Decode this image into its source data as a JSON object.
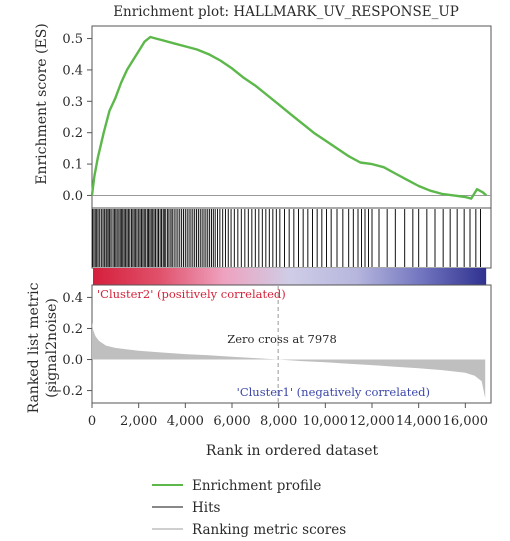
{
  "chart_data": {
    "type": "line",
    "title": "Enrichment plot: HALLMARK_UV_RESPONSE_UP",
    "xlabel": "Rank in ordered dataset",
    "x_ticks": [
      "0",
      "2,000",
      "4,000",
      "6,000",
      "8,000",
      "10,000",
      "12,000",
      "14,000",
      "16,000"
    ],
    "x_tick_values": [
      0,
      2000,
      4000,
      6000,
      8000,
      10000,
      12000,
      14000,
      16000
    ],
    "xlim": [
      0,
      17100
    ],
    "es_panel": {
      "ylabel": "Enrichment score (ES)",
      "ylim": [
        -0.04,
        0.54
      ],
      "y_ticks": [
        "0.0",
        "0.1",
        "0.2",
        "0.3",
        "0.4",
        "0.5"
      ],
      "y_tick_values": [
        0,
        0.1,
        0.2,
        0.3,
        0.4,
        0.5
      ],
      "series": [
        {
          "name": "Enrichment profile",
          "color": "#5cb84a",
          "x": [
            0,
            100,
            250,
            500,
            750,
            1000,
            1250,
            1500,
            1750,
            2000,
            2250,
            2500,
            2750,
            3000,
            3500,
            4000,
            4500,
            5000,
            5500,
            6000,
            6500,
            7000,
            7500,
            8000,
            8500,
            9000,
            9500,
            10000,
            10500,
            11000,
            11500,
            12000,
            12500,
            13000,
            13500,
            14000,
            14500,
            15000,
            15500,
            16000,
            16250,
            16500,
            16750,
            16900
          ],
          "y": [
            0.0,
            0.06,
            0.12,
            0.2,
            0.27,
            0.31,
            0.36,
            0.4,
            0.43,
            0.46,
            0.49,
            0.505,
            0.5,
            0.495,
            0.485,
            0.475,
            0.465,
            0.45,
            0.43,
            0.405,
            0.375,
            0.35,
            0.32,
            0.29,
            0.26,
            0.23,
            0.2,
            0.175,
            0.15,
            0.125,
            0.105,
            0.1,
            0.09,
            0.07,
            0.05,
            0.03,
            0.015,
            0.005,
            0.0,
            -0.005,
            -0.01,
            0.02,
            0.01,
            0.0
          ]
        }
      ]
    },
    "hits": {
      "name": "Hits",
      "ranks": [
        20,
        80,
        140,
        200,
        260,
        330,
        400,
        470,
        530,
        600,
        650,
        720,
        760,
        820,
        900,
        960,
        1020,
        1080,
        1150,
        1210,
        1270,
        1320,
        1380,
        1440,
        1500,
        1560,
        1620,
        1690,
        1750,
        1810,
        1870,
        1930,
        2000,
        2060,
        2120,
        2180,
        2240,
        2300,
        2370,
        2420,
        2480,
        2540,
        2600,
        2660,
        2720,
        2790,
        2850,
        2920,
        2980,
        3050,
        3100,
        3160,
        3240,
        3300,
        3380,
        3440,
        3520,
        3600,
        3680,
        3760,
        3840,
        3920,
        4000,
        4080,
        4160,
        4240,
        4320,
        4400,
        4480,
        4560,
        4640,
        4720,
        4800,
        4880,
        4960,
        5040,
        5120,
        5200,
        5280,
        5380,
        5480,
        5600,
        5720,
        5840,
        5960,
        6100,
        6250,
        6400,
        6550,
        6700,
        6850,
        7000,
        7150,
        7300,
        7450,
        7600,
        7750,
        7900,
        8050,
        8250,
        8450,
        8650,
        8850,
        9050,
        9250,
        9450,
        9650,
        9850,
        10050,
        10250,
        10500,
        10750,
        11000,
        11200,
        11400,
        11550,
        11700,
        11850,
        12000,
        12300,
        12650,
        13000,
        13400,
        13750,
        14000,
        14350,
        14700,
        15050,
        15350,
        15650,
        15950,
        16200,
        16450,
        16650
      ]
    },
    "ranking_metric": {
      "name": "Ranking metric scores",
      "ylabel": "Ranked list metric\n(signal2noise)",
      "ylim": [
        -0.28,
        0.48
      ],
      "y_ticks": [
        "0.4",
        "0.2",
        "0.0",
        "−0.2"
      ],
      "y_tick_values": [
        0.4,
        0.2,
        0.0,
        -0.2
      ],
      "x": [
        0,
        50,
        150,
        300,
        600,
        1000,
        1500,
        2000,
        3000,
        4000,
        5000,
        6000,
        7000,
        7978,
        9000,
        10000,
        11000,
        12000,
        13000,
        14000,
        15000,
        16000,
        16400,
        16700,
        16850
      ],
      "y": [
        0.24,
        0.19,
        0.15,
        0.12,
        0.09,
        0.075,
        0.065,
        0.057,
        0.045,
        0.035,
        0.027,
        0.018,
        0.009,
        0.0,
        -0.01,
        -0.018,
        -0.027,
        -0.036,
        -0.046,
        -0.056,
        -0.068,
        -0.085,
        -0.105,
        -0.14,
        -0.25
      ],
      "color": "#bfbfbf",
      "zero_cross": 7978,
      "zero_cross_label": "Zero cross at 7978",
      "positive_label": "'Cluster2' (positively correlated)",
      "negative_label": "'Cluster1' (negatively correlated)"
    },
    "legend": {
      "placement": "bottom",
      "entries": [
        {
          "name": "Enrichment profile",
          "color": "#5cb84a"
        },
        {
          "name": "Hits",
          "color": "#888888"
        },
        {
          "name": "Ranking metric scores",
          "color": "#cfcfcf"
        }
      ]
    },
    "heatbar_colors": [
      "#d51f3c",
      "#e0506a",
      "#eea2bf",
      "#cfcde6",
      "#b7b7de",
      "#7376c0",
      "#2f318f"
    ]
  }
}
